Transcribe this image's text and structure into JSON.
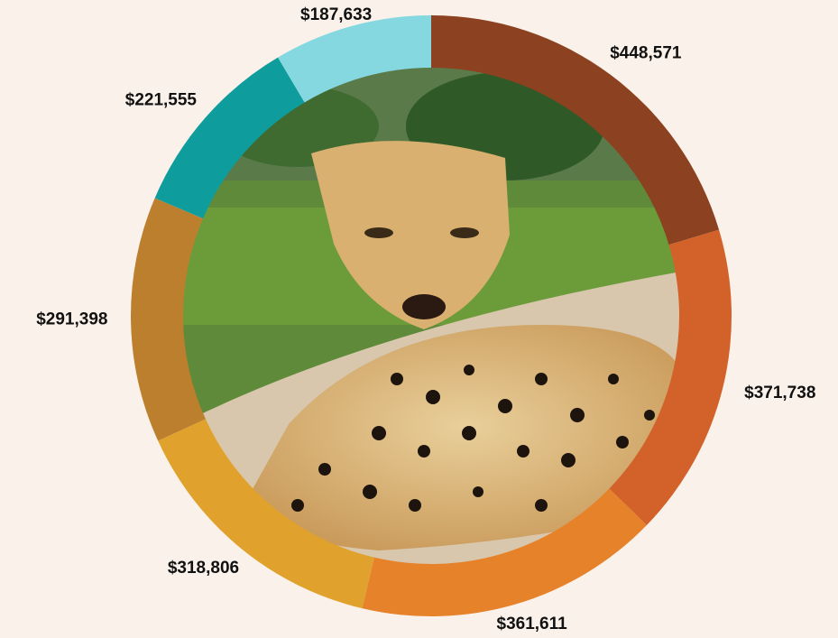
{
  "chart_data": {
    "type": "donut",
    "values": [
      448571,
      371738,
      361611,
      318806,
      291398,
      221555,
      187633
    ],
    "value_labels": [
      "$448,571",
      "$371,738",
      "$361,611",
      "$318,806",
      "$291,398",
      "$221,555",
      "$187,633"
    ],
    "colors": [
      "#8c4220",
      "#d2622a",
      "#e6822a",
      "#e0a22c",
      "#bc7f2e",
      "#0f9c9c",
      "#86d8e0"
    ]
  }
}
